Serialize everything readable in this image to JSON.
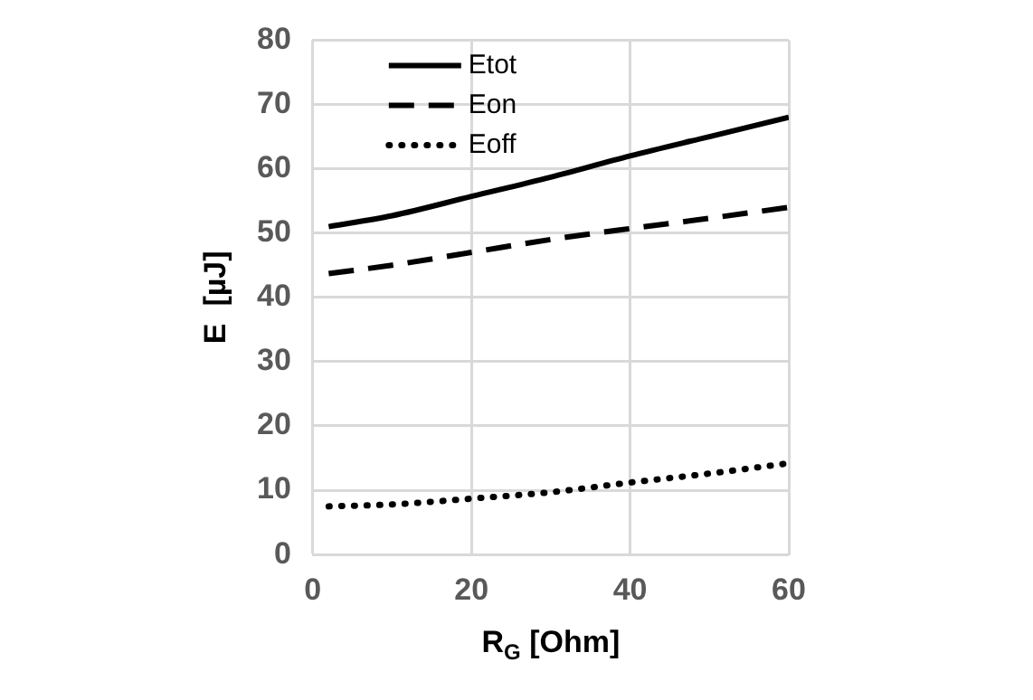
{
  "chart_data": {
    "type": "line",
    "xlabel": "R$_{G}$ [Ohm]",
    "ylabel": "E  [µJ]",
    "xlim": [
      0,
      60
    ],
    "xticks": [
      0,
      20,
      40,
      60
    ],
    "ylim": [
      0,
      80
    ],
    "yticks": [
      0,
      10,
      20,
      30,
      40,
      50,
      60,
      70,
      80
    ],
    "grid": true,
    "legend": "top left",
    "marker": "none",
    "x": [
      2,
      10,
      20,
      30,
      40,
      50,
      60
    ],
    "series": [
      {
        "name": "Etot",
        "color": "#000000",
        "line_style": "solid",
        "values": [
          51,
          52.7,
          55.7,
          58.7,
          62,
          65,
          68
        ]
      },
      {
        "name": "Eon",
        "color": "#000000",
        "line_style": "dashed",
        "values": [
          43.7,
          45,
          47,
          49,
          50.7,
          52.3,
          54
        ]
      },
      {
        "name": "Eoff",
        "color": "#000000",
        "line_style": "dotted",
        "values": [
          7.5,
          7.8,
          8.7,
          9.7,
          11.2,
          12.6,
          14.2
        ]
      }
    ]
  }
}
